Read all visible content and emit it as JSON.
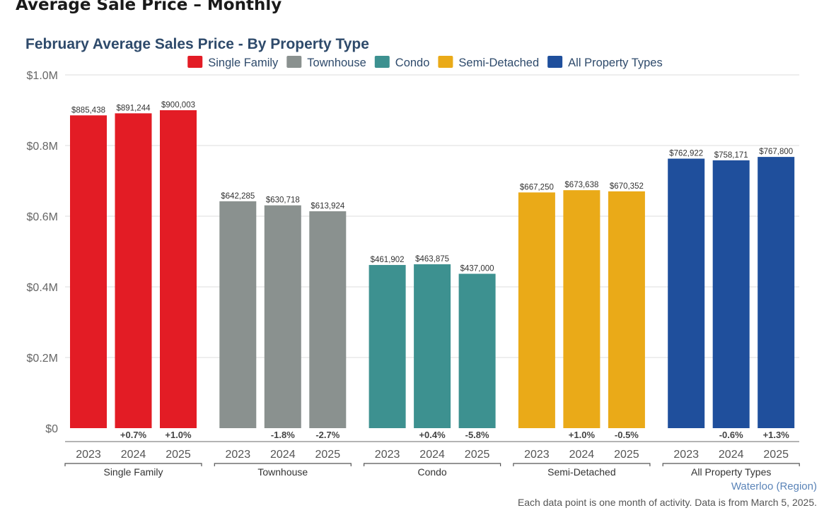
{
  "page": {
    "heading": "Average Sale Price – Monthly"
  },
  "chart_data": {
    "type": "bar",
    "title": "February Average Sales Price - By Property Type",
    "ylim": [
      0,
      1000000
    ],
    "y_ticks": [
      {
        "value": 0,
        "label": "$0"
      },
      {
        "value": 200000,
        "label": "$0.2M"
      },
      {
        "value": 400000,
        "label": "$0.4M"
      },
      {
        "value": 600000,
        "label": "$0.6M"
      },
      {
        "value": 800000,
        "label": "$0.8M"
      },
      {
        "value": 1000000,
        "label": "$1.0M"
      }
    ],
    "grid": true,
    "legend_position": "top",
    "groups": [
      {
        "name": "Single Family",
        "color": "#e31c25",
        "bars": [
          {
            "year": "2023",
            "value": 885438,
            "label": "$885,438",
            "change": ""
          },
          {
            "year": "2024",
            "value": 891244,
            "label": "$891,244",
            "change": "+0.7%"
          },
          {
            "year": "2025",
            "value": 900003,
            "label": "$900,003",
            "change": "+1.0%"
          }
        ]
      },
      {
        "name": "Townhouse",
        "color": "#8a918f",
        "bars": [
          {
            "year": "2023",
            "value": 642285,
            "label": "$642,285",
            "change": ""
          },
          {
            "year": "2024",
            "value": 630718,
            "label": "$630,718",
            "change": "-1.8%"
          },
          {
            "year": "2025",
            "value": 613924,
            "label": "$613,924",
            "change": "-2.7%"
          }
        ]
      },
      {
        "name": "Condo",
        "color": "#3d9190",
        "bars": [
          {
            "year": "2023",
            "value": 461902,
            "label": "$461,902",
            "change": ""
          },
          {
            "year": "2024",
            "value": 463875,
            "label": "$463,875",
            "change": "+0.4%"
          },
          {
            "year": "2025",
            "value": 437000,
            "label": "$437,000",
            "change": "-5.8%"
          }
        ]
      },
      {
        "name": "Semi-Detached",
        "color": "#eaaa18",
        "bars": [
          {
            "year": "2023",
            "value": 667250,
            "label": "$667,250",
            "change": ""
          },
          {
            "year": "2024",
            "value": 673638,
            "label": "$673,638",
            "change": "+1.0%"
          },
          {
            "year": "2025",
            "value": 670352,
            "label": "$670,352",
            "change": "-0.5%"
          }
        ]
      },
      {
        "name": "All Property Types",
        "color": "#1f4f9c",
        "bars": [
          {
            "year": "2023",
            "value": 762922,
            "label": "$762,922",
            "change": ""
          },
          {
            "year": "2024",
            "value": 758171,
            "label": "$758,171",
            "change": "-0.6%"
          },
          {
            "year": "2025",
            "value": 767800,
            "label": "$767,800",
            "change": "+1.3%"
          }
        ]
      }
    ]
  },
  "footer": {
    "region": "Waterloo (Region)",
    "note": "Each data point is one month of activity. Data is from March 5, 2025."
  }
}
